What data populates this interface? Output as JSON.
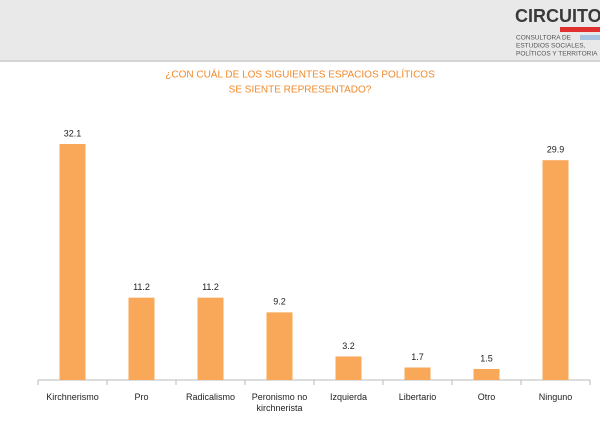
{
  "logo": {
    "name": "CIRCUITO",
    "lines": [
      "CONSULTORA DE",
      "ESTUDIOS SOCIALES,",
      "POLÍTICOS Y TERRITORIA"
    ]
  },
  "chart_data": {
    "type": "bar",
    "title": [
      "¿CON CUÁL DE LOS SIGUIENTES ESPACIOS POLÍTICOS",
      "SE SIENTE REPRESENTADO?"
    ],
    "categories": [
      "Kirchnerismo",
      "Pro",
      "Radicalismo",
      "Peronismo no kirchnerista",
      "Izquierda",
      "Libertario",
      "Otro",
      "Ninguno"
    ],
    "values": [
      32.1,
      11.2,
      11.2,
      9.2,
      3.2,
      1.7,
      1.5,
      29.9
    ],
    "color": "#f9a85a"
  }
}
